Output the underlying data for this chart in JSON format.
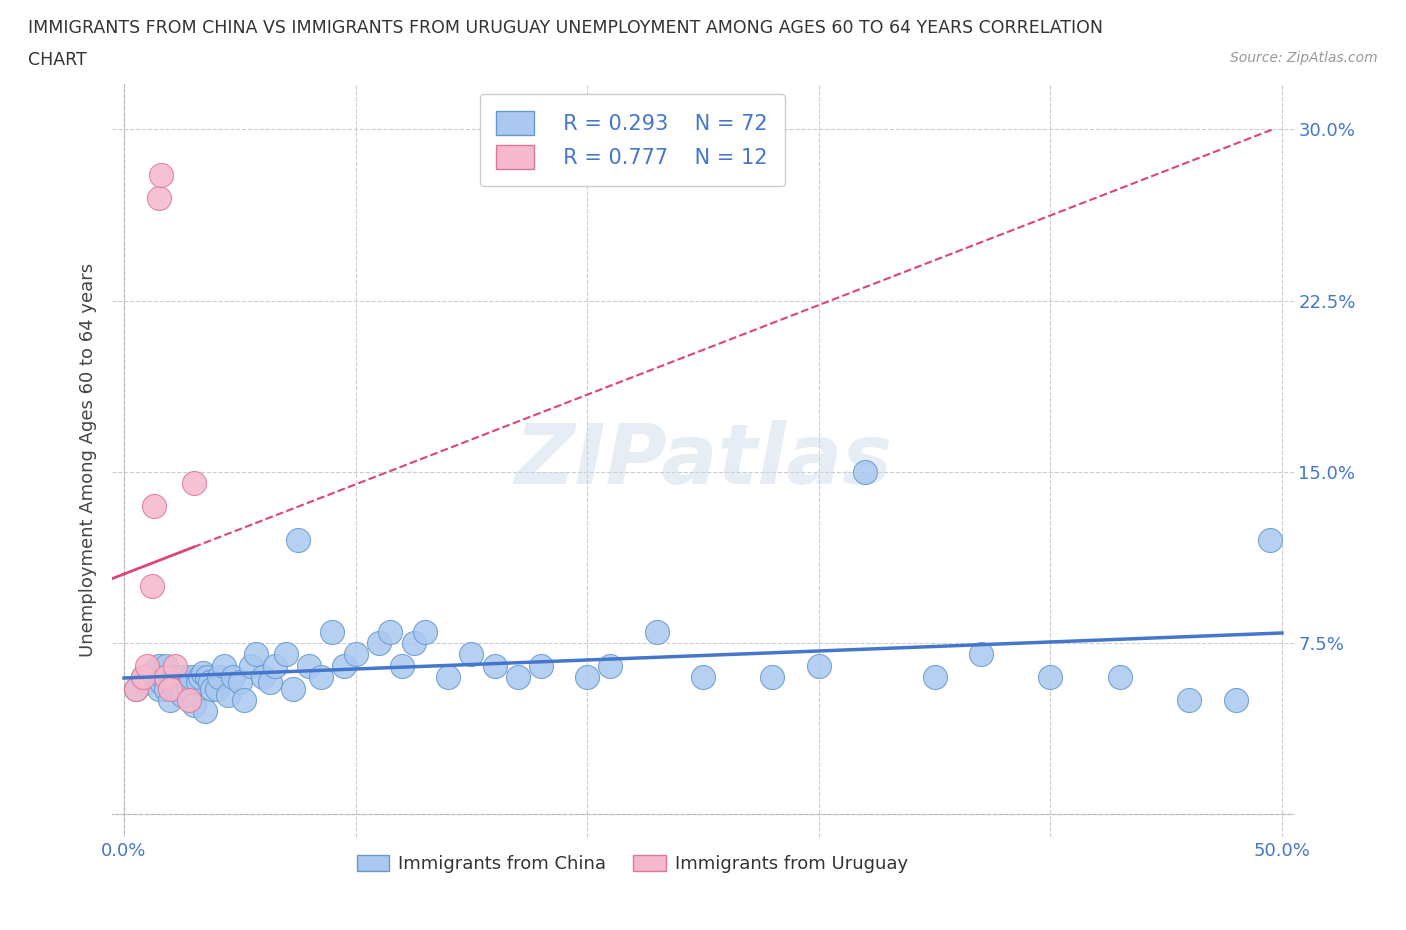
{
  "title_line1": "IMMIGRANTS FROM CHINA VS IMMIGRANTS FROM URUGUAY UNEMPLOYMENT AMONG AGES 60 TO 64 YEARS CORRELATION",
  "title_line2": "CHART",
  "source_text": "Source: ZipAtlas.com",
  "ylabel": "Unemployment Among Ages 60 to 64 years",
  "xlim": [
    -0.005,
    0.505
  ],
  "ylim": [
    -0.01,
    0.32
  ],
  "xticks": [
    0.0,
    0.1,
    0.2,
    0.3,
    0.4,
    0.5
  ],
  "yticks": [
    0.0,
    0.075,
    0.15,
    0.225,
    0.3
  ],
  "xticklabels_left": "0.0%",
  "xticklabels_right": "50.0%",
  "yticklabels": [
    "",
    "7.5%",
    "15.0%",
    "22.5%",
    "30.0%"
  ],
  "china_color": "#aac8f0",
  "china_edge_color": "#6699cc",
  "uruguay_color": "#f5b8cc",
  "uruguay_edge_color": "#dd7799",
  "trend_china_color": "#4477cc",
  "trend_uruguay_color": "#dd4477",
  "legend_R_china": "R = 0.293",
  "legend_N_china": "N = 72",
  "legend_R_uruguay": "R = 0.777",
  "legend_N_uruguay": "N = 12",
  "watermark": "ZIPatlas",
  "china_x": [
    0.005,
    0.008,
    0.01,
    0.012,
    0.015,
    0.015,
    0.016,
    0.017,
    0.018,
    0.018,
    0.02,
    0.021,
    0.022,
    0.022,
    0.023,
    0.025,
    0.026,
    0.027,
    0.028,
    0.029,
    0.03,
    0.032,
    0.033,
    0.034,
    0.035,
    0.036,
    0.037,
    0.038,
    0.04,
    0.041,
    0.043,
    0.045,
    0.047,
    0.05,
    0.052,
    0.055,
    0.057,
    0.06,
    0.063,
    0.065,
    0.07,
    0.073,
    0.075,
    0.08,
    0.085,
    0.09,
    0.095,
    0.1,
    0.11,
    0.115,
    0.12,
    0.125,
    0.13,
    0.14,
    0.15,
    0.16,
    0.17,
    0.18,
    0.2,
    0.21,
    0.23,
    0.25,
    0.28,
    0.3,
    0.32,
    0.35,
    0.37,
    0.4,
    0.43,
    0.46,
    0.48,
    0.495
  ],
  "china_y": [
    0.055,
    0.06,
    0.058,
    0.062,
    0.055,
    0.065,
    0.058,
    0.06,
    0.055,
    0.065,
    0.05,
    0.058,
    0.06,
    0.055,
    0.06,
    0.052,
    0.06,
    0.058,
    0.055,
    0.06,
    0.048,
    0.058,
    0.06,
    0.062,
    0.045,
    0.06,
    0.058,
    0.055,
    0.055,
    0.06,
    0.065,
    0.052,
    0.06,
    0.058,
    0.05,
    0.065,
    0.07,
    0.06,
    0.058,
    0.065,
    0.07,
    0.055,
    0.12,
    0.065,
    0.06,
    0.08,
    0.065,
    0.07,
    0.075,
    0.08,
    0.065,
    0.075,
    0.08,
    0.06,
    0.07,
    0.065,
    0.06,
    0.065,
    0.06,
    0.065,
    0.08,
    0.06,
    0.06,
    0.065,
    0.15,
    0.06,
    0.07,
    0.06,
    0.06,
    0.05,
    0.05,
    0.12
  ],
  "uruguay_x": [
    0.005,
    0.008,
    0.01,
    0.012,
    0.013,
    0.015,
    0.016,
    0.018,
    0.02,
    0.022,
    0.028,
    0.03
  ],
  "uruguay_y": [
    0.055,
    0.06,
    0.065,
    0.1,
    0.135,
    0.27,
    0.28,
    0.06,
    0.055,
    0.065,
    0.05,
    0.145
  ]
}
